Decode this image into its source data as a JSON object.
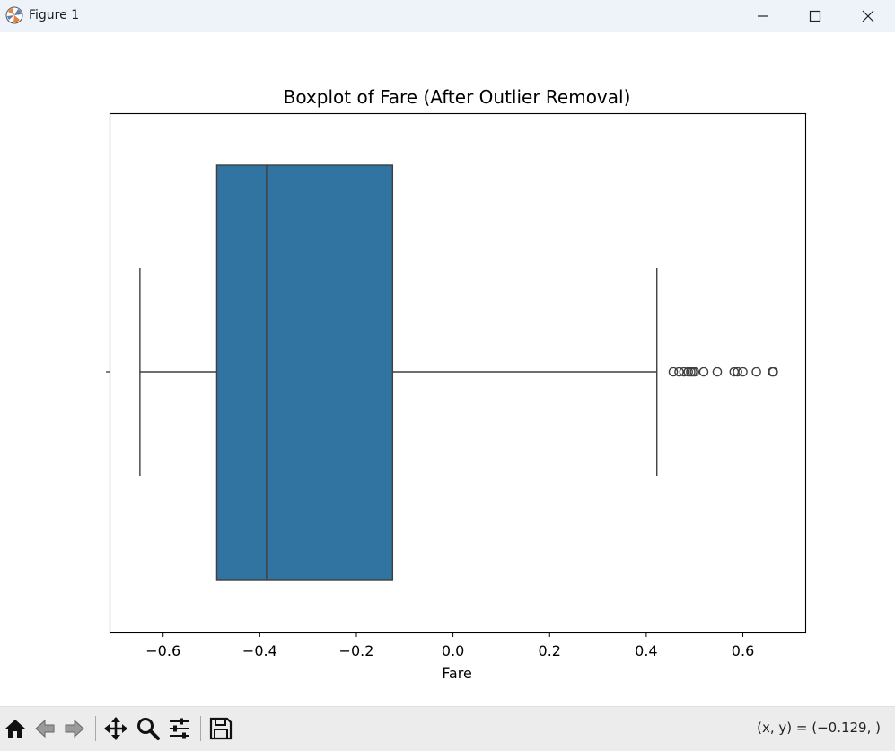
{
  "window": {
    "title": "Figure 1",
    "buttons": [
      "minimize",
      "maximize",
      "close"
    ]
  },
  "toolbar": {
    "buttons": [
      {
        "name": "home-icon",
        "label": "Home"
      },
      {
        "name": "back-icon",
        "label": "Back"
      },
      {
        "name": "forward-icon",
        "label": "Forward"
      },
      {
        "name": "pan-icon",
        "label": "Pan"
      },
      {
        "name": "zoom-icon",
        "label": "Zoom"
      },
      {
        "name": "configure-subplots-icon",
        "label": "Configure subplots"
      },
      {
        "name": "save-icon",
        "label": "Save"
      }
    ],
    "coordinate_readout": "(x, y) = (−0.129, )"
  },
  "colors": {
    "box_fill": "#3274a1",
    "line": "#3f3f3f",
    "titlebar_bg": "#eef2f9",
    "toolbar_bg": "#ececec"
  },
  "chart_data": {
    "type": "boxplot",
    "title": "Boxplot of Fare (After Outlier Removal)",
    "xlabel": "Fare",
    "ylabel": "",
    "orientation": "horizontal",
    "xlim": [
      -0.71,
      0.73
    ],
    "xticks": [
      -0.6,
      -0.4,
      -0.2,
      0.0,
      0.2,
      0.4,
      0.6
    ],
    "xtick_labels": [
      "−0.6",
      "−0.4",
      "−0.2",
      "0.0",
      "0.2",
      "0.4",
      "0.6"
    ],
    "box": {
      "whisker_low": -0.648,
      "q1": -0.489,
      "median": -0.386,
      "q3": -0.125,
      "whisker_high": 0.422
    },
    "outliers": [
      0.456,
      0.468,
      0.478,
      0.487,
      0.492,
      0.496,
      0.5,
      0.519,
      0.547,
      0.582,
      0.589,
      0.6,
      0.628,
      0.661,
      0.663
    ]
  }
}
